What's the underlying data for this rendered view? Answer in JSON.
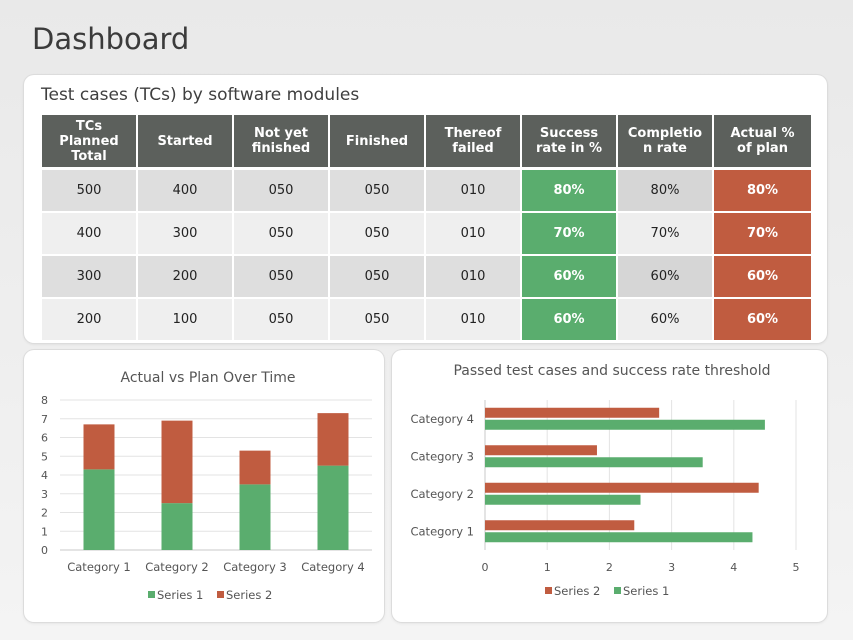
{
  "page": {
    "title": "Dashboard"
  },
  "table_card": {
    "title": "Test cases (TCs) by software modules",
    "headers": [
      "TCs Planned Total",
      "Started",
      "Not yet finished",
      "Finished",
      "Thereof failed",
      "Success rate in %",
      "Completion rate",
      "Actual % of plan"
    ],
    "header_lines": [
      [
        "TCs",
        "Planned",
        "Total"
      ],
      [
        "Started"
      ],
      [
        "Not yet",
        "finished"
      ],
      [
        "Finished"
      ],
      [
        "Thereof",
        "failed"
      ],
      [
        "Success",
        "rate in %"
      ],
      [
        "Completio",
        "n rate"
      ],
      [
        "Actual %",
        "of plan"
      ]
    ],
    "rows": [
      [
        "500",
        "400",
        "050",
        "050",
        "010",
        "80%",
        "80%",
        "80%"
      ],
      [
        "400",
        "300",
        "050",
        "050",
        "010",
        "70%",
        "70%",
        "70%"
      ],
      [
        "300",
        "200",
        "050",
        "050",
        "010",
        "60%",
        "60%",
        "60%"
      ],
      [
        "200",
        "100",
        "050",
        "050",
        "010",
        "60%",
        "60%",
        "60%"
      ]
    ]
  },
  "colors": {
    "green": "#5aad6e",
    "red": "#c05c40",
    "header": "#5c605c"
  },
  "chart_data": [
    {
      "type": "bar",
      "stacked": true,
      "title": "Actual vs Plan Over Time",
      "categories": [
        "Category 1",
        "Category 2",
        "Category 3",
        "Category 4"
      ],
      "series": [
        {
          "name": "Series 1",
          "color": "#5aad6e",
          "values": [
            4.3,
            2.5,
            3.5,
            4.5
          ]
        },
        {
          "name": "Series 2",
          "color": "#c05c40",
          "values": [
            2.4,
            4.4,
            1.8,
            2.8
          ]
        }
      ],
      "ylim": [
        0,
        8
      ],
      "yticks": [
        "0",
        "1",
        "2",
        "3",
        "4",
        "5",
        "6",
        "7",
        "8"
      ],
      "legend": "bottom"
    },
    {
      "type": "bar",
      "orientation": "horizontal",
      "title": "Passed test cases and success rate threshold",
      "categories": [
        "Category 1",
        "Category 2",
        "Category 3",
        "Category 4"
      ],
      "series": [
        {
          "name": "Series 1",
          "color": "#5aad6e",
          "values": [
            4.3,
            2.5,
            3.5,
            4.5
          ]
        },
        {
          "name": "Series 2",
          "color": "#c05c40",
          "values": [
            2.4,
            4.4,
            1.8,
            2.8
          ]
        }
      ],
      "xlim": [
        0,
        5
      ],
      "xticks": [
        "0",
        "1",
        "2",
        "3",
        "4",
        "5"
      ],
      "legend_order": [
        "Series 2",
        "Series 1"
      ],
      "legend": "bottom"
    }
  ]
}
